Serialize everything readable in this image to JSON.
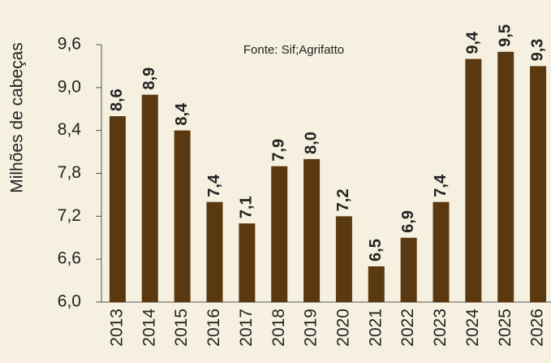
{
  "chart_data": {
    "type": "bar",
    "y_axis_label": "Milhões de cabeças",
    "annotation": "Fonte: Sif;Agrifatto",
    "categories": [
      "2013",
      "2014",
      "2015",
      "2016",
      "2017",
      "2018",
      "2019",
      "2020",
      "2021",
      "2022",
      "2023",
      "2024",
      "2025",
      "2026"
    ],
    "values": [
      8.6,
      8.9,
      8.4,
      7.4,
      7.1,
      7.9,
      8.0,
      7.2,
      6.5,
      6.9,
      7.4,
      9.4,
      9.5,
      9.3
    ],
    "value_labels": [
      "8,6",
      "8,9",
      "8,4",
      "7,4",
      "7,1",
      "7,9",
      "8,0",
      "7,2",
      "6,5",
      "6,9",
      "7,4",
      "9,4",
      "9,5",
      "9,3"
    ],
    "color": "#5a3810",
    "ylim": [
      6,
      9.6
    ],
    "yticks": [
      {
        "value": 6,
        "label": "6,0"
      },
      {
        "value": 6.6,
        "label": "6,6"
      },
      {
        "value": 7.2,
        "label": "7,2"
      },
      {
        "value": 7.8,
        "label": "7,8"
      },
      {
        "value": 8.4,
        "label": "8,4"
      },
      {
        "value": 9,
        "label": "9,0"
      },
      {
        "value": 9.6,
        "label": "9,6"
      }
    ],
    "grid": false
  }
}
